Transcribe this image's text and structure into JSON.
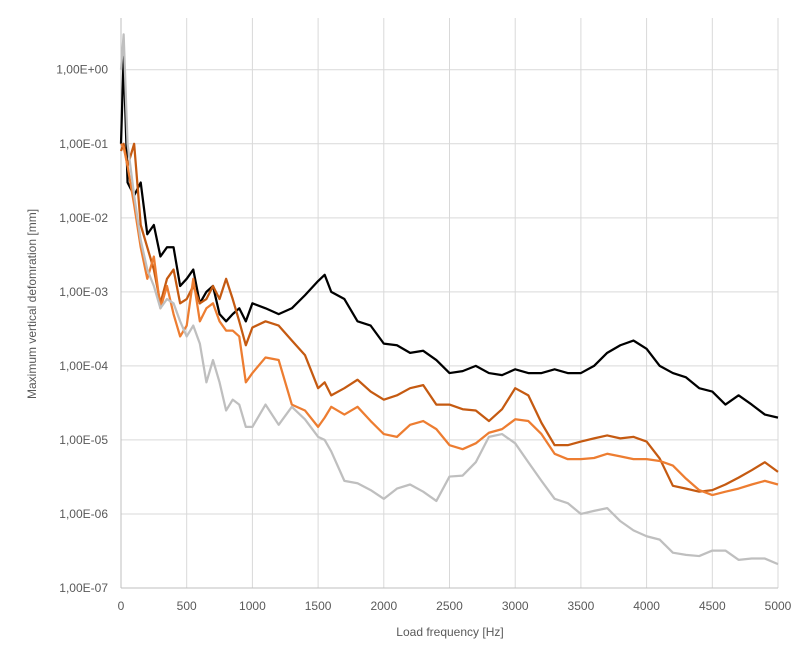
{
  "chart_data": {
    "type": "line",
    "x_label": "Load frequency [Hz]",
    "y_label": "Maximum vertical defomration [mm]",
    "yscale": "log",
    "grid": true,
    "x": [
      0,
      20,
      50,
      100,
      150,
      200,
      250,
      300,
      350,
      400,
      450,
      500,
      550,
      600,
      650,
      700,
      750,
      800,
      850,
      900,
      950,
      1000,
      1100,
      1200,
      1300,
      1400,
      1500,
      1550,
      1600,
      1700,
      1800,
      1900,
      2000,
      2100,
      2200,
      2300,
      2400,
      2500,
      2600,
      2700,
      2800,
      2900,
      3000,
      3100,
      3200,
      3300,
      3400,
      3500,
      3600,
      3700,
      3800,
      3900,
      4000,
      4100,
      4200,
      4300,
      4400,
      4500,
      4600,
      4700,
      4800,
      4900,
      5000
    ],
    "series": [
      {
        "color": "#000000",
        "values": [
          0.1,
          1.5,
          0.03,
          0.02,
          0.03,
          0.006,
          0.008,
          0.003,
          0.004,
          0.004,
          0.0012,
          0.0015,
          0.002,
          0.0007,
          0.001,
          0.0012,
          0.0005,
          0.0004,
          0.0005,
          0.0006,
          0.0004,
          0.0007,
          0.0006,
          0.0005,
          0.0006,
          0.0009,
          0.0014,
          0.0017,
          0.001,
          0.0008,
          0.0004,
          0.00035,
          0.0002,
          0.00019,
          0.00015,
          0.00016,
          0.00012,
          8e-05,
          8.5e-05,
          0.0001,
          8e-05,
          7.5e-05,
          9e-05,
          8e-05,
          8e-05,
          9e-05,
          8e-05,
          8e-05,
          0.0001,
          0.00015,
          0.00019,
          0.00022,
          0.00017,
          0.0001,
          8e-05,
          7e-05,
          5e-05,
          4.5e-05,
          3e-05,
          4e-05,
          3e-05,
          2.2e-05,
          2e-05
        ]
      },
      {
        "color": "#c55a11",
        "values": [
          0.08,
          0.1,
          0.05,
          0.1,
          0.008,
          0.004,
          0.002,
          0.0007,
          0.0015,
          0.002,
          0.0007,
          0.0008,
          0.0012,
          0.0007,
          0.0008,
          0.0012,
          0.0008,
          0.0015,
          0.0008,
          0.0004,
          0.00019,
          0.00033,
          0.0004,
          0.00035,
          0.00022,
          0.00014,
          5e-05,
          6e-05,
          4e-05,
          5e-05,
          6.5e-05,
          4.5e-05,
          3.5e-05,
          4e-05,
          5e-05,
          5.5e-05,
          3e-05,
          3e-05,
          2.6e-05,
          2.5e-05,
          1.8e-05,
          2.6e-05,
          5e-05,
          4e-05,
          1.7e-05,
          8.5e-06,
          8.5e-06,
          9.5e-06,
          1.05e-05,
          1.15e-05,
          1.05e-05,
          1.1e-05,
          9.5e-06,
          5.6e-06,
          2.4e-06,
          2.2e-06,
          2e-06,
          2.1e-06,
          2.5e-06,
          3.1e-06,
          3.9e-06,
          5e-06,
          3.7e-06
        ]
      },
      {
        "color": "#ed7d31",
        "values": [
          0.1,
          0.09,
          0.05,
          0.015,
          0.004,
          0.0015,
          0.003,
          0.0006,
          0.0012,
          0.0005,
          0.00025,
          0.00035,
          0.0015,
          0.0004,
          0.0006,
          0.0007,
          0.0004,
          0.0003,
          0.0003,
          0.00025,
          6e-05,
          8e-05,
          0.00013,
          0.00012,
          3e-05,
          2.5e-05,
          1.5e-05,
          2e-05,
          2.8e-05,
          2.2e-05,
          2.8e-05,
          1.8e-05,
          1.2e-05,
          1.1e-05,
          1.6e-05,
          1.8e-05,
          1.4e-05,
          8.5e-06,
          7.5e-06,
          9e-06,
          1.25e-05,
          1.4e-05,
          1.9e-05,
          1.8e-05,
          1.2e-05,
          6.5e-06,
          5.5e-06,
          5.5e-06,
          5.7e-06,
          6.5e-06,
          6e-06,
          5.5e-06,
          5.5e-06,
          5.2e-06,
          4.5e-06,
          3e-06,
          2.1e-06,
          1.8e-06,
          2e-06,
          2.2e-06,
          2.5e-06,
          2.8e-06,
          2.5e-06
        ]
      },
      {
        "color": "#bfbfbf",
        "values": [
          1.0,
          3,
          0.1,
          0.02,
          0.005,
          0.002,
          0.0012,
          0.0006,
          0.0008,
          0.0007,
          0.0004,
          0.00025,
          0.00035,
          0.0002,
          6e-05,
          0.00012,
          6e-05,
          2.5e-05,
          3.5e-05,
          3e-05,
          1.5e-05,
          1.5e-05,
          3e-05,
          1.6e-05,
          2.8e-05,
          1.9e-05,
          1.1e-05,
          1e-05,
          7e-06,
          2.8e-06,
          2.6e-06,
          2.1e-06,
          1.6e-06,
          2.2e-06,
          2.5e-06,
          2e-06,
          1.5e-06,
          3.2e-06,
          3.3e-06,
          5e-06,
          1.1e-05,
          1.2e-05,
          9e-06,
          5e-06,
          2.8e-06,
          1.6e-06,
          1.4e-06,
          1e-06,
          1.1e-06,
          1.2e-06,
          8e-07,
          6e-07,
          5e-07,
          4.5e-07,
          3e-07,
          2.8e-07,
          2.7e-07,
          3.2e-07,
          3.2e-07,
          2.4e-07,
          2.5e-07,
          2.5e-07,
          2.1e-07
        ]
      }
    ],
    "xlim": [
      0,
      5000
    ],
    "xticks": [
      0,
      500,
      1000,
      1500,
      2000,
      2500,
      3000,
      3500,
      4000,
      4500,
      5000
    ],
    "ylim": [
      1e-07,
      5
    ],
    "yticks": [
      {
        "value": 1e-07,
        "label": "1,00E-07"
      },
      {
        "value": 1e-06,
        "label": "1,00E-06"
      },
      {
        "value": 1e-05,
        "label": "1,00E-05"
      },
      {
        "value": 0.0001,
        "label": "1,00E-04"
      },
      {
        "value": 0.001,
        "label": "1,00E-03"
      },
      {
        "value": 0.01,
        "label": "1,00E-02"
      },
      {
        "value": 0.1,
        "label": "1,00E-01"
      },
      {
        "value": 1,
        "label": "1,00E+00"
      }
    ]
  }
}
